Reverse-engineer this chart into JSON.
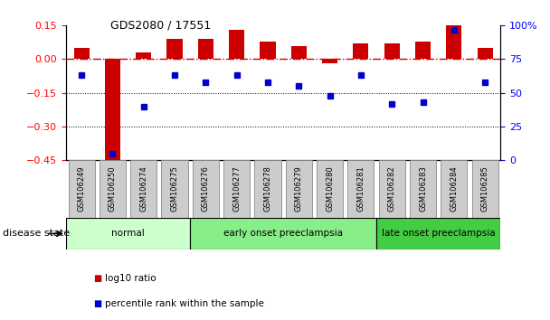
{
  "title": "GDS2080 / 17551",
  "samples": [
    "GSM106249",
    "GSM106250",
    "GSM106274",
    "GSM106275",
    "GSM106276",
    "GSM106277",
    "GSM106278",
    "GSM106279",
    "GSM106280",
    "GSM106281",
    "GSM106282",
    "GSM106283",
    "GSM106284",
    "GSM106285"
  ],
  "log10_ratio": [
    0.05,
    -0.46,
    0.03,
    0.09,
    0.09,
    0.13,
    0.08,
    0.06,
    -0.02,
    0.07,
    0.07,
    0.08,
    0.15,
    0.05
  ],
  "percentile_rank": [
    63,
    5,
    40,
    63,
    58,
    63,
    58,
    55,
    48,
    63,
    42,
    43,
    97,
    58
  ],
  "disease_groups": [
    {
      "label": "normal",
      "start": 0,
      "end": 3,
      "color": "#ccffcc"
    },
    {
      "label": "early onset preeclampsia",
      "start": 4,
      "end": 9,
      "color": "#88ee88"
    },
    {
      "label": "late onset preeclampsia",
      "start": 10,
      "end": 13,
      "color": "#44cc44"
    }
  ],
  "ylim_left": [
    -0.45,
    0.15
  ],
  "ylim_right": [
    0,
    100
  ],
  "yticks_left": [
    -0.45,
    -0.3,
    -0.15,
    0.0,
    0.15
  ],
  "yticks_right": [
    0,
    25,
    50,
    75,
    100
  ],
  "ytick_labels_right": [
    "0",
    "25",
    "50",
    "75",
    "100%"
  ],
  "hline_y": 0.0,
  "dotted_lines": [
    -0.15,
    -0.3
  ],
  "bar_color": "#cc0000",
  "dot_color": "#0000cc",
  "legend_entries": [
    "log10 ratio",
    "percentile rank within the sample"
  ],
  "disease_state_label": "disease state",
  "background_color": "#ffffff",
  "tick_box_color": "#cccccc",
  "tick_box_edge": "#888888"
}
